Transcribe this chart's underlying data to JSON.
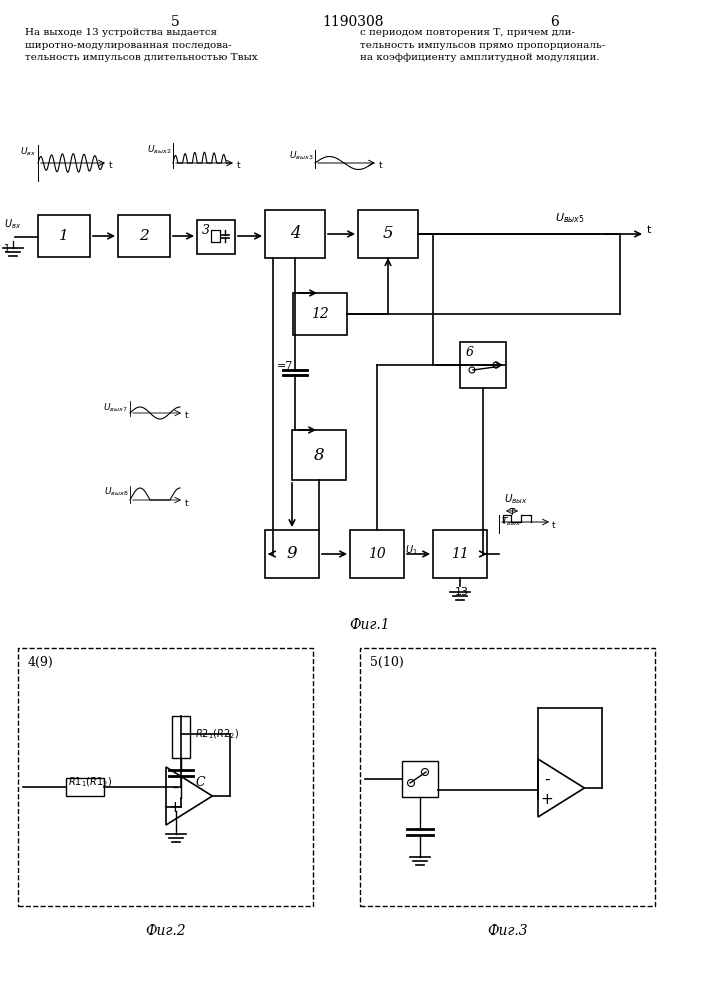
{
  "title": "1190308",
  "page_left": "5",
  "page_right": "6",
  "text_left": "На выходе 13 устройства выдается\nширотно-модулированная последова-\nтельность импульсов длительностью Tвых",
  "text_right": "с периодом повторения Т, причем дли-\nтельность импульсов прямо пропорциональ-\nна коэффициенту амплитудной модуляции.",
  "fig1_label": "Фиг.1",
  "fig2_label": "Фиг.2",
  "fig3_label": "Фиг.3",
  "bg_color": "#ffffff",
  "line_color": "#000000"
}
